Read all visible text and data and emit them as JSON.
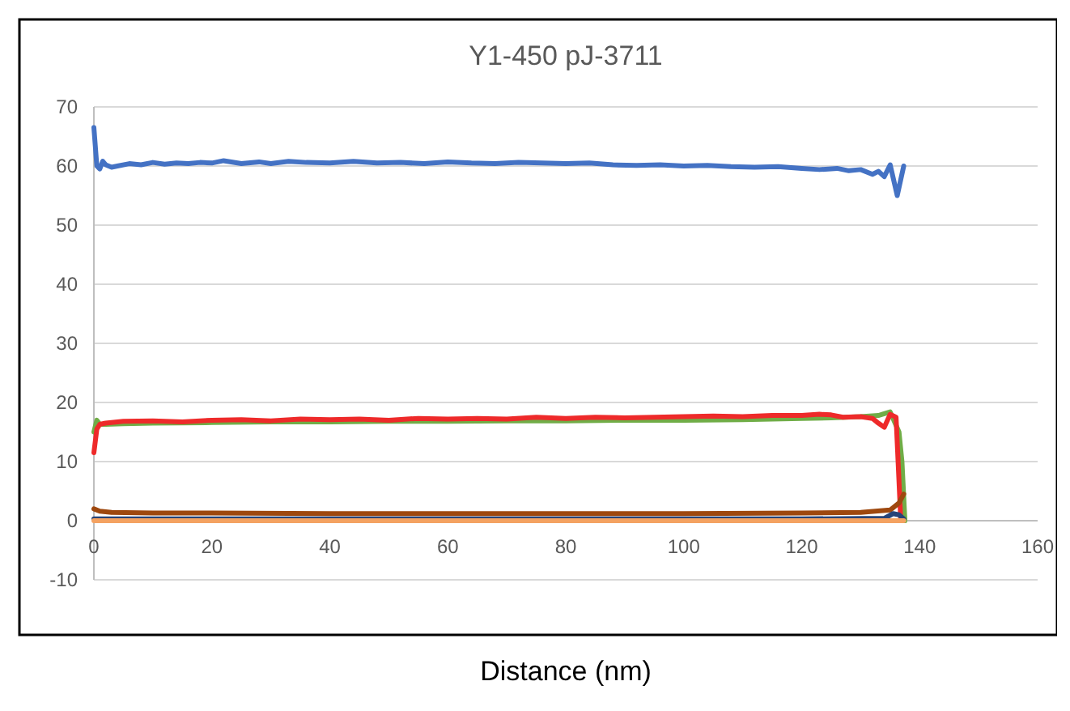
{
  "chart_data": {
    "type": "line",
    "title": "Y1-450 pJ-3711",
    "xlabel": "Distance (nm)",
    "xlim": [
      0,
      160
    ],
    "xticks": [
      0,
      20,
      40,
      60,
      80,
      100,
      120,
      140,
      160
    ],
    "ylim": [
      -10,
      70
    ],
    "yticks": [
      -10,
      0,
      10,
      20,
      30,
      40,
      50,
      60,
      70
    ],
    "grid": "y",
    "marker": "none",
    "line_style": "solid",
    "series": [
      {
        "color": "#4472c4",
        "x": [
          0,
          0.5,
          1,
          1.5,
          2,
          3,
          4,
          6,
          8,
          10,
          12,
          14,
          16,
          18,
          20,
          22,
          25,
          28,
          30,
          33,
          36,
          40,
          44,
          48,
          52,
          56,
          60,
          64,
          68,
          72,
          76,
          80,
          84,
          88,
          92,
          96,
          100,
          104,
          108,
          112,
          116,
          120,
          123,
          126,
          128,
          130,
          132,
          133,
          134,
          135,
          136.2,
          137.3
        ],
        "values": [
          66.5,
          60,
          59.5,
          60.8,
          60.2,
          59.8,
          60,
          60.4,
          60.2,
          60.6,
          60.3,
          60.5,
          60.4,
          60.6,
          60.5,
          60.9,
          60.4,
          60.7,
          60.4,
          60.8,
          60.6,
          60.5,
          60.8,
          60.5,
          60.6,
          60.4,
          60.7,
          60.5,
          60.4,
          60.6,
          60.5,
          60.4,
          60.5,
          60.2,
          60.1,
          60.2,
          60,
          60.1,
          59.9,
          59.8,
          59.9,
          59.6,
          59.4,
          59.6,
          59.2,
          59.4,
          58.6,
          59.1,
          58.2,
          60.2,
          55,
          60
        ]
      },
      {
        "color": "#70ad47",
        "x": [
          0,
          0.5,
          1,
          2,
          5,
          10,
          20,
          30,
          40,
          50,
          60,
          70,
          80,
          90,
          100,
          110,
          120,
          125,
          130,
          133,
          135,
          136.5,
          137,
          137.5
        ],
        "values": [
          15,
          17,
          16.3,
          16.3,
          16.4,
          16.5,
          16.6,
          16.7,
          16.7,
          16.8,
          16.8,
          16.9,
          16.9,
          17,
          17,
          17.1,
          17.3,
          17.4,
          17.6,
          17.8,
          18.4,
          15,
          10,
          0
        ]
      },
      {
        "color": "#ee2a2a",
        "x": [
          0,
          0.5,
          1,
          2,
          5,
          10,
          15,
          20,
          25,
          30,
          35,
          40,
          45,
          50,
          55,
          60,
          65,
          70,
          75,
          80,
          85,
          90,
          95,
          100,
          105,
          110,
          115,
          120,
          123,
          125,
          127,
          130,
          132,
          133,
          134,
          135,
          136,
          136.8
        ],
        "values": [
          11.5,
          15.5,
          16.3,
          16.5,
          16.8,
          16.9,
          16.7,
          17,
          17.1,
          16.9,
          17.2,
          17.1,
          17.2,
          17,
          17.3,
          17.2,
          17.3,
          17.2,
          17.5,
          17.3,
          17.5,
          17.4,
          17.5,
          17.6,
          17.7,
          17.6,
          17.8,
          17.8,
          18,
          17.9,
          17.5,
          17.6,
          17.3,
          16.5,
          15.8,
          18,
          17.5,
          0
        ]
      },
      {
        "color": "#9e480e",
        "x": [
          0,
          1,
          3,
          10,
          20,
          40,
          60,
          80,
          100,
          120,
          130,
          135,
          136.5,
          137.3
        ],
        "values": [
          2,
          1.6,
          1.4,
          1.3,
          1.3,
          1.2,
          1.2,
          1.2,
          1.2,
          1.3,
          1.4,
          1.8,
          3,
          4.5
        ]
      },
      {
        "color": "#264478",
        "x": [
          0,
          20,
          40,
          60,
          80,
          100,
          120,
          134,
          135.5,
          136.5,
          137.3
        ],
        "values": [
          0.3,
          0.3,
          0.3,
          0.3,
          0.3,
          0.3,
          0.3,
          0.4,
          1.2,
          1,
          0.3
        ]
      },
      {
        "color": "#f4a261",
        "x": [
          0,
          20,
          40,
          60,
          80,
          100,
          120,
          137.3
        ],
        "values": [
          0,
          0,
          0,
          0,
          0,
          0,
          0,
          0
        ]
      }
    ]
  }
}
